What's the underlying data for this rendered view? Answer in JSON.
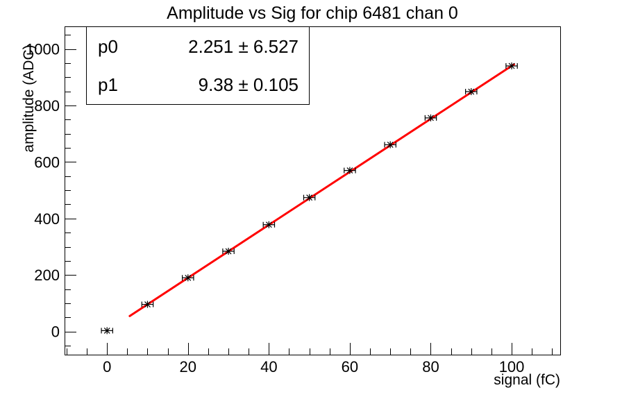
{
  "chart_data": {
    "type": "scatter",
    "title": "Amplitude vs Sig for chip 6481 chan 0",
    "xlabel": "signal (fC)",
    "ylabel": "amplitude (ADC)",
    "xlim": [
      -10.5,
      112
    ],
    "ylim": [
      -82,
      1080
    ],
    "x_major_ticks": [
      0,
      20,
      40,
      60,
      80,
      100
    ],
    "x_minor_step": 5,
    "y_major_ticks": [
      0,
      200,
      400,
      600,
      800,
      1000
    ],
    "y_minor_step": 50,
    "grid": false,
    "legend": "none",
    "series": [
      {
        "name": "data-points",
        "kind": "scatter",
        "marker": "asterisk",
        "color": "#000000",
        "x": [
          0,
          10,
          20,
          30,
          40,
          50,
          60,
          70,
          80,
          90,
          100
        ],
        "y": [
          3,
          96,
          190,
          284,
          378,
          474,
          570,
          661,
          756,
          849,
          940
        ],
        "x_err": 1.4
      },
      {
        "name": "linear-fit",
        "kind": "line",
        "color": "#ff0000",
        "width": 3,
        "p0": 2.251,
        "p1": 9.38,
        "fit_range": [
          5.6,
          100.6
        ]
      }
    ],
    "stats_box": {
      "rows": [
        {
          "param": "p0",
          "value": "2.251 ± 6.527"
        },
        {
          "param": "p1",
          "value": "9.38 ± 0.105"
        }
      ]
    }
  },
  "colors": {
    "background": "#ffffff",
    "frame": "#000000",
    "fit_line": "#ff0000",
    "marker": "#000000",
    "text": "#000000"
  }
}
